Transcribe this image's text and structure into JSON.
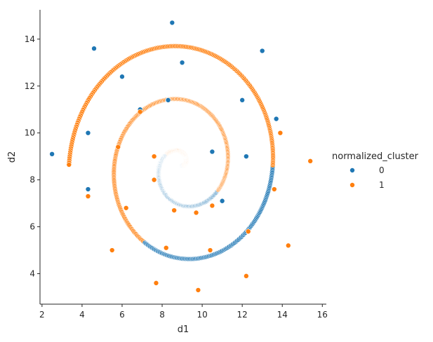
{
  "chart_data": {
    "type": "scatter",
    "title": "",
    "xlabel": "d1",
    "ylabel": "d2",
    "xlim": [
      1.9,
      16.2
    ],
    "ylim": [
      2.7,
      15.25
    ],
    "xticks": [
      2,
      4,
      6,
      8,
      10,
      12,
      14,
      16
    ],
    "yticks": [
      4,
      6,
      8,
      10,
      12,
      14
    ],
    "grid": false,
    "legend": {
      "title": "normalized_cluster",
      "placement": "right",
      "entries": [
        {
          "label": "0",
          "color": "#1f77b4"
        },
        {
          "label": "1",
          "color": "#ff7f0e"
        }
      ]
    },
    "spiral_model": {
      "center": [
        9.0,
        8.6
      ],
      "theta_start": 0.0,
      "theta_end": 15.7,
      "radius_per_radian": 0.36,
      "n_points": 1000,
      "cluster_switch_angles_deg": [
        15,
        155,
        330,
        600,
        720,
        900,
        1010
      ]
    },
    "series": [
      {
        "name": "0",
        "color": "#1f77b4",
        "points": [
          [
            10.5,
            9.2
          ],
          [
            8.3,
            11.4
          ],
          [
            6.9,
            11.0
          ],
          [
            12.2,
            9.0
          ],
          [
            12.0,
            11.4
          ],
          [
            9.0,
            13.0
          ],
          [
            6.0,
            12.4
          ],
          [
            4.3,
            10.0
          ],
          [
            4.3,
            7.6
          ],
          [
            11.0,
            7.1
          ],
          [
            13.7,
            10.6
          ],
          [
            13.0,
            13.5
          ],
          [
            8.5,
            14.7
          ],
          [
            4.6,
            13.6
          ],
          [
            2.5,
            9.1
          ]
        ]
      },
      {
        "name": "1",
        "color": "#ff7f0e",
        "points": [
          [
            7.6,
            9.0
          ],
          [
            7.6,
            8.0
          ],
          [
            8.6,
            6.7
          ],
          [
            9.7,
            6.6
          ],
          [
            10.5,
            6.9
          ],
          [
            6.9,
            10.9
          ],
          [
            5.8,
            9.4
          ],
          [
            6.2,
            6.8
          ],
          [
            8.2,
            5.1
          ],
          [
            10.4,
            5.0
          ],
          [
            12.3,
            5.8
          ],
          [
            13.6,
            7.6
          ],
          [
            13.9,
            10.0
          ],
          [
            4.3,
            7.3
          ],
          [
            5.5,
            5.0
          ],
          [
            7.7,
            3.6
          ],
          [
            9.8,
            3.3
          ],
          [
            12.2,
            3.9
          ],
          [
            14.3,
            5.2
          ],
          [
            15.4,
            8.8
          ]
        ]
      }
    ]
  }
}
